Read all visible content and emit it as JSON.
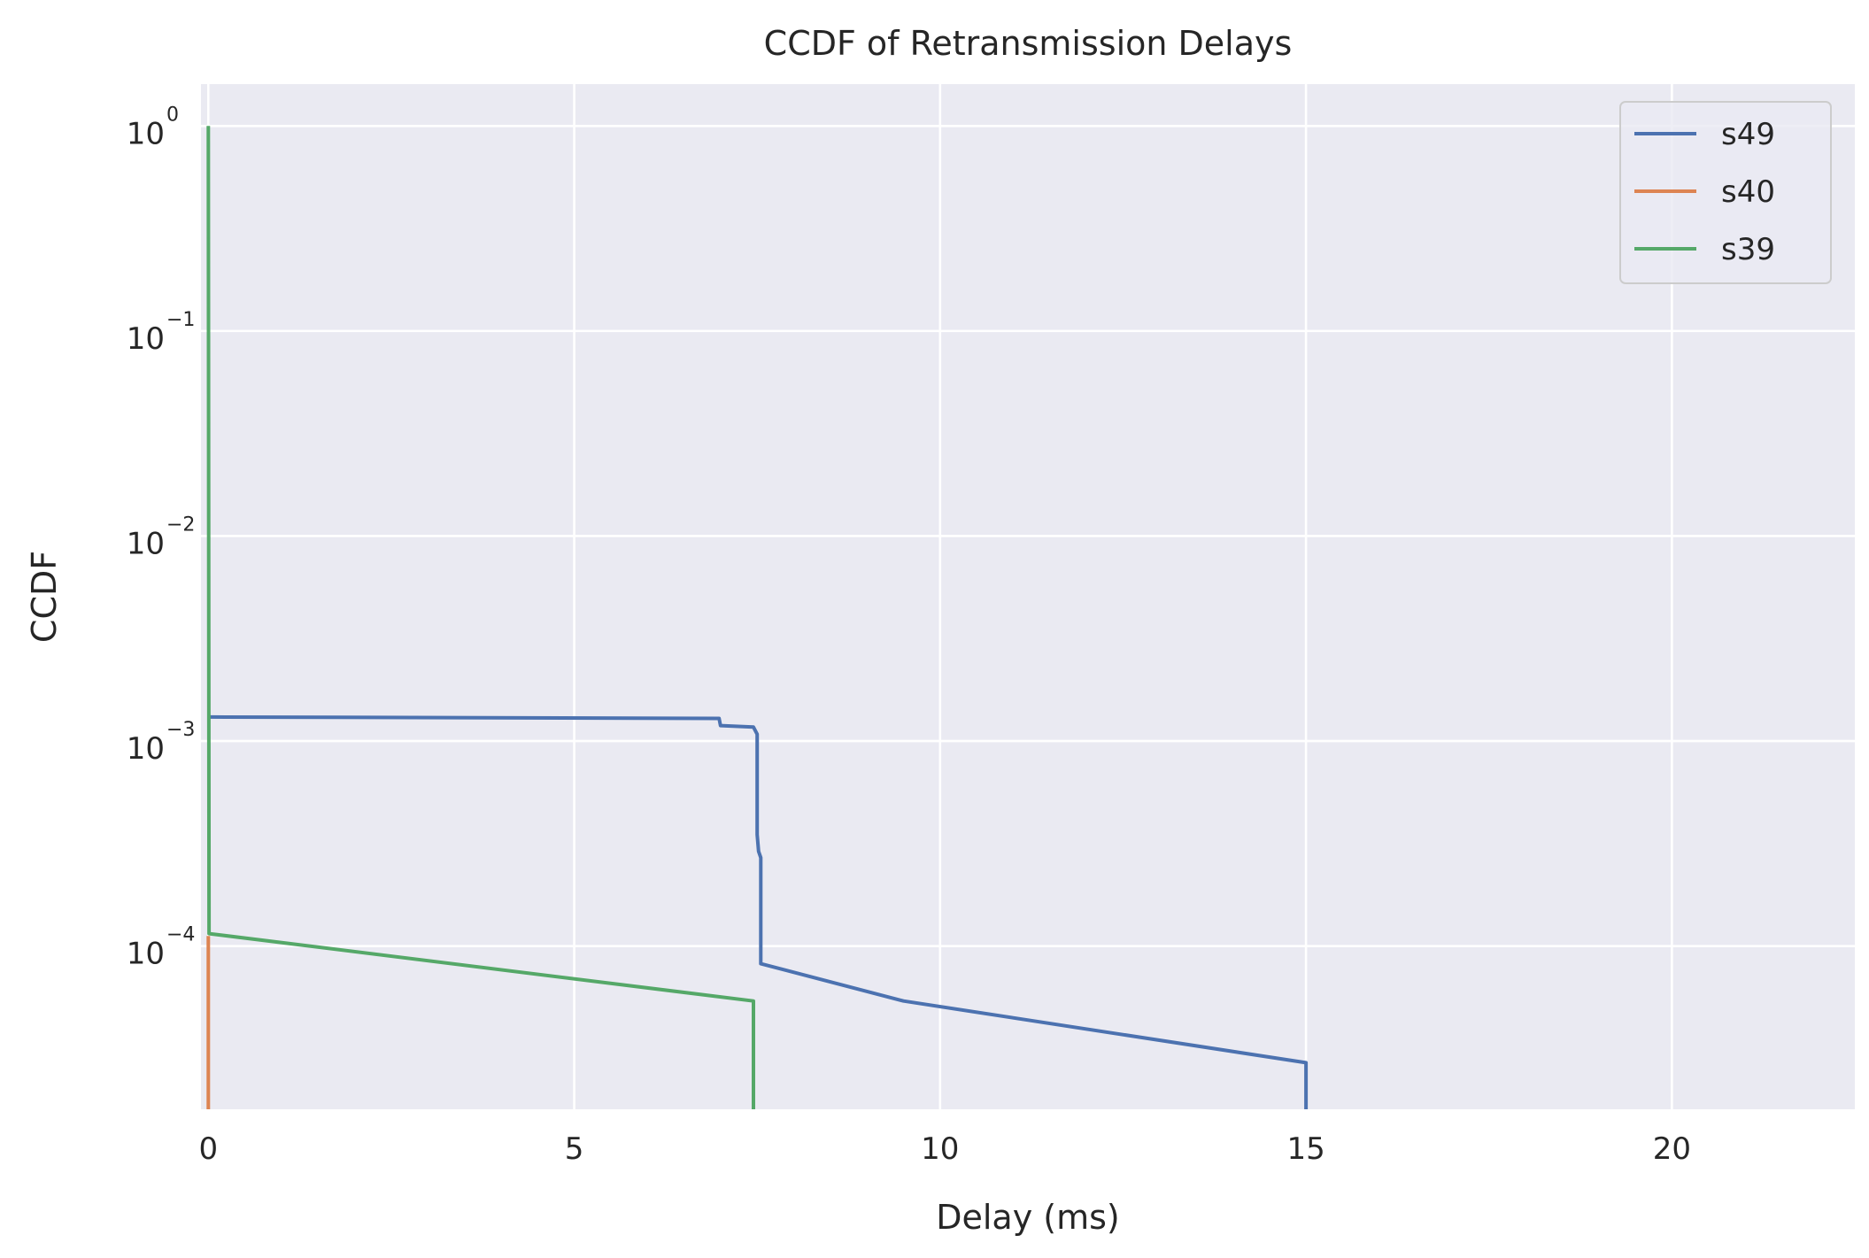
{
  "chart_data": {
    "type": "line",
    "title": "CCDF of Retransmission Delays",
    "xlabel": "Delay (ms)",
    "ylabel": "CCDF",
    "xlim": [
      -0.1,
      22.5
    ],
    "ylim": [
      1.6e-05,
      1.6
    ],
    "yscale": "log",
    "grid": true,
    "legend_position": "top-right",
    "xticks": [
      0,
      5,
      10,
      15,
      20
    ],
    "xtick_labels": [
      "0",
      "5",
      "10",
      "15",
      "20"
    ],
    "yticks": [
      {
        "value": 1,
        "base": "10",
        "exp": "0"
      },
      {
        "value": 0.1,
        "base": "10",
        "exp": "−1"
      },
      {
        "value": 0.01,
        "base": "10",
        "exp": "−2"
      },
      {
        "value": 0.001,
        "base": "10",
        "exp": "−3"
      },
      {
        "value": 0.0001,
        "base": "10",
        "exp": "−4"
      }
    ],
    "series": [
      {
        "name": "s49",
        "color": "#4c72b0",
        "points": [
          [
            0,
            0.00131
          ],
          [
            6.98,
            0.00129
          ],
          [
            7.0,
            0.00119
          ],
          [
            7.45,
            0.00117
          ],
          [
            7.5,
            0.00108
          ],
          [
            7.5,
            0.00035
          ],
          [
            7.52,
            0.00029
          ],
          [
            7.55,
            0.00027
          ],
          [
            7.55,
            8.2e-05
          ],
          [
            9.5,
            5.4e-05
          ],
          [
            15.0,
            2.7e-05
          ],
          [
            15.0,
            1.6e-05
          ]
        ]
      },
      {
        "name": "s40",
        "color": "#dd8452",
        "points": [
          [
            0,
            0.000112
          ],
          [
            0,
            1.6e-05
          ]
        ]
      },
      {
        "name": "s39",
        "color": "#55a868",
        "points": [
          [
            0,
            1.0
          ],
          [
            0.01,
            0.000115
          ],
          [
            7.45,
            5.4e-05
          ],
          [
            7.45,
            1.6e-05
          ]
        ]
      }
    ]
  }
}
